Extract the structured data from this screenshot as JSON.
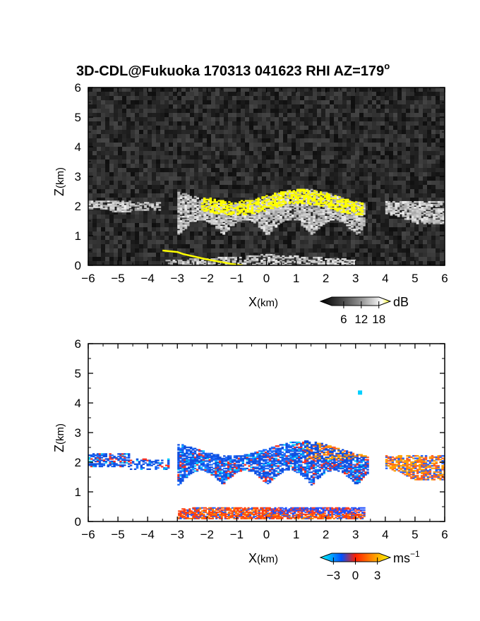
{
  "chart_data": [
    {
      "type": "heatmap",
      "title": "3D-CDL@Fukuoka 170313 041623 RHI AZ=179",
      "title_superscript": "o",
      "xlabel": "X",
      "xlabel_unit": "(km)",
      "ylabel": "Z",
      "ylabel_unit": "(km)",
      "xlim": [
        -6,
        6
      ],
      "ylim": [
        0,
        6
      ],
      "x_ticks": [
        -6,
        -5,
        -4,
        -3,
        -2,
        -1,
        0,
        1,
        2,
        3,
        4,
        5,
        6
      ],
      "y_ticks": [
        0,
        1,
        2,
        3,
        4,
        5,
        6
      ],
      "colorbar": {
        "unit": "dB",
        "ticks": [
          6,
          12,
          18
        ],
        "range": [
          0,
          20
        ],
        "colors": [
          "#000000",
          "#555555",
          "#aaaaaa",
          "#ffffff",
          "#ffff00"
        ]
      },
      "features": {
        "cloud_layer_left": {
          "x": [
            -6,
            -4.6
          ],
          "z": [
            1.8,
            2.2
          ]
        },
        "cloud_main": {
          "x": [
            -3.0,
            3.3
          ],
          "z": [
            0.9,
            2.6
          ]
        },
        "cloud_right": {
          "x": [
            4.0,
            6.0
          ],
          "z": [
            1.4,
            2.2
          ]
        },
        "strong_echo_top": {
          "x": [
            -2.2,
            3.2
          ],
          "z": [
            1.7,
            2.6
          ],
          "color": "#ffff00"
        },
        "ground_clutter": {
          "x": [
            -3.4,
            3.0
          ],
          "z": [
            0,
            0.5
          ]
        }
      }
    },
    {
      "type": "heatmap",
      "xlabel": "X",
      "xlabel_unit": "(km)",
      "ylabel": "Z",
      "ylabel_unit": "(km)",
      "xlim": [
        -6,
        6
      ],
      "ylim": [
        0,
        6
      ],
      "x_ticks": [
        -6,
        -5,
        -4,
        -3,
        -2,
        -1,
        0,
        1,
        2,
        3,
        4,
        5,
        6
      ],
      "y_ticks": [
        0,
        1,
        2,
        3,
        4,
        5,
        6
      ],
      "colorbar": {
        "unit": "ms",
        "unit_superscript": "−1",
        "ticks": [
          -3,
          0,
          3
        ],
        "tick_labels": [
          "−3",
          "0",
          "3"
        ],
        "range": [
          -4,
          4
        ],
        "colors": [
          "#00ffff",
          "#0040ff",
          "#ff2000",
          "#ffc000",
          "#ffff00"
        ]
      },
      "features": {
        "cloud_layer_left": {
          "x": [
            -6,
            -4.6
          ],
          "z": [
            1.8,
            2.3
          ]
        },
        "cloud_main": {
          "x": [
            -3.0,
            3.4
          ],
          "z": [
            1.1,
            2.8
          ]
        },
        "cloud_right": {
          "x": [
            4.0,
            6.0
          ],
          "z": [
            1.4,
            2.2
          ]
        },
        "isolated_point": {
          "x": 3.15,
          "z": 4.35
        },
        "low_layer": {
          "x": [
            -3.4,
            3.3
          ],
          "z": [
            0.05,
            0.5
          ]
        }
      }
    }
  ]
}
